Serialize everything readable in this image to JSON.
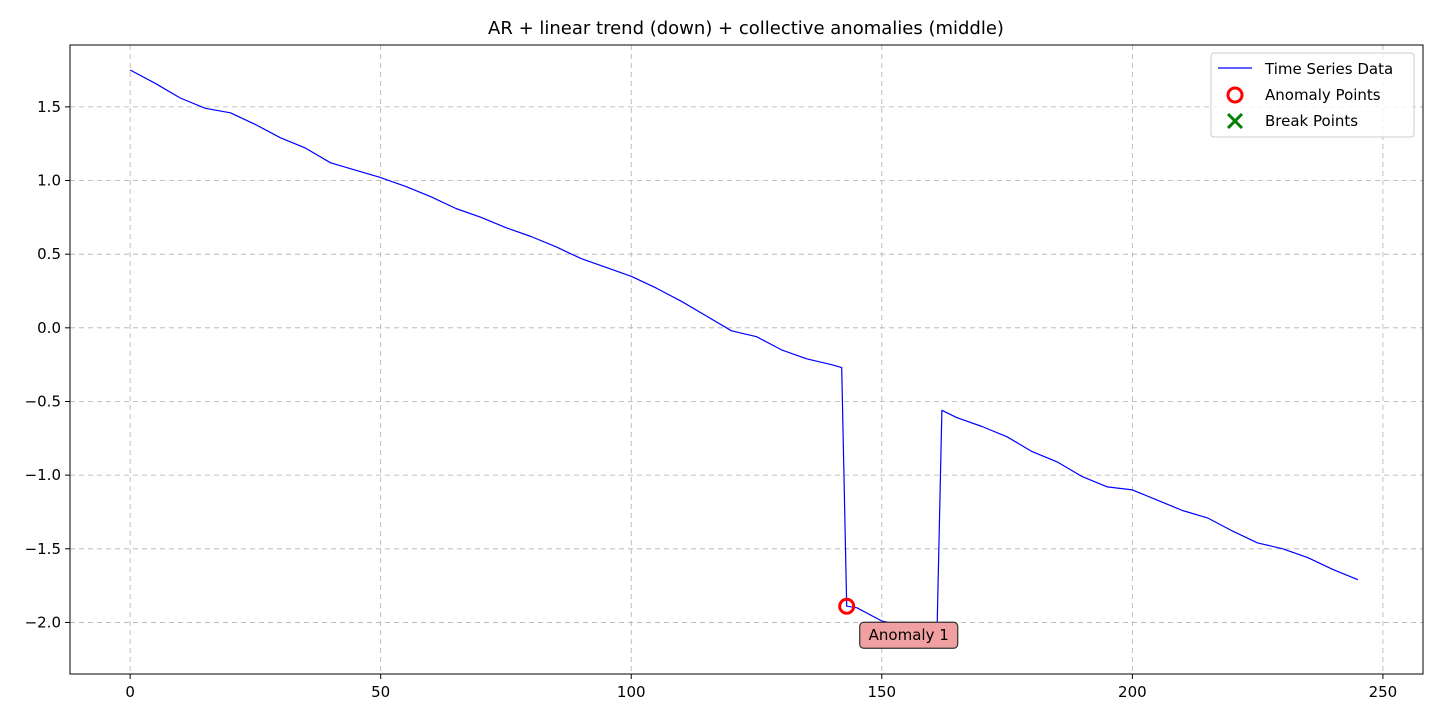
{
  "chart_data": {
    "type": "line",
    "title": "AR + linear trend (down) + collective anomalies (middle)",
    "xlabel": "",
    "ylabel": "",
    "xlim": [
      -12,
      258
    ],
    "ylim": [
      -2.35,
      1.92
    ],
    "xticks": [
      0,
      50,
      100,
      150,
      200,
      250
    ],
    "yticks": [
      1.5,
      1.0,
      0.5,
      0.0,
      -0.5,
      -1.0,
      -1.5,
      -2.0
    ],
    "xtick_labels": [
      "0",
      "50",
      "100",
      "150",
      "200",
      "250"
    ],
    "ytick_labels": [
      "1.5",
      "1.0",
      "0.5",
      "0.0",
      "−0.5",
      "−1.0",
      "−1.5",
      "−2.0"
    ],
    "grid": true,
    "legend_placement": "top-right",
    "series": [
      {
        "name": "Time Series Data",
        "color": "#0000ff",
        "x": [
          0,
          5,
          10,
          15,
          20,
          25,
          30,
          35,
          40,
          45,
          50,
          55,
          60,
          65,
          70,
          75,
          80,
          85,
          90,
          95,
          100,
          105,
          110,
          115,
          120,
          125,
          130,
          135,
          140,
          142,
          143,
          145,
          150,
          155,
          160,
          161,
          162,
          165,
          170,
          175,
          180,
          185,
          190,
          195,
          200,
          205,
          210,
          215,
          220,
          225,
          230,
          235,
          240,
          245
        ],
        "y": [
          1.75,
          1.66,
          1.56,
          1.49,
          1.46,
          1.38,
          1.29,
          1.22,
          1.12,
          1.07,
          1.02,
          0.96,
          0.89,
          0.81,
          0.75,
          0.68,
          0.62,
          0.55,
          0.47,
          0.41,
          0.35,
          0.27,
          0.18,
          0.08,
          -0.02,
          -0.06,
          -0.15,
          -0.21,
          -0.25,
          -0.27,
          -1.89,
          -1.9,
          -1.99,
          -2.03,
          -2.08,
          -2.1,
          -0.56,
          -0.61,
          -0.67,
          -0.74,
          -0.84,
          -0.91,
          -1.01,
          -1.08,
          -1.1,
          -1.17,
          -1.24,
          -1.29,
          -1.38,
          -1.46,
          -1.5,
          -1.56,
          -1.64,
          -1.71
        ]
      },
      {
        "name": "Anomaly Points",
        "color": "#ff0000",
        "marker": "circle",
        "x": [
          143
        ],
        "y": [
          -1.89
        ]
      },
      {
        "name": "Break Points",
        "color": "#008000",
        "marker": "x",
        "x": [],
        "y": []
      }
    ],
    "annotations": [
      {
        "text": "Anomaly 1",
        "x": 143,
        "y": -1.89
      }
    ]
  }
}
